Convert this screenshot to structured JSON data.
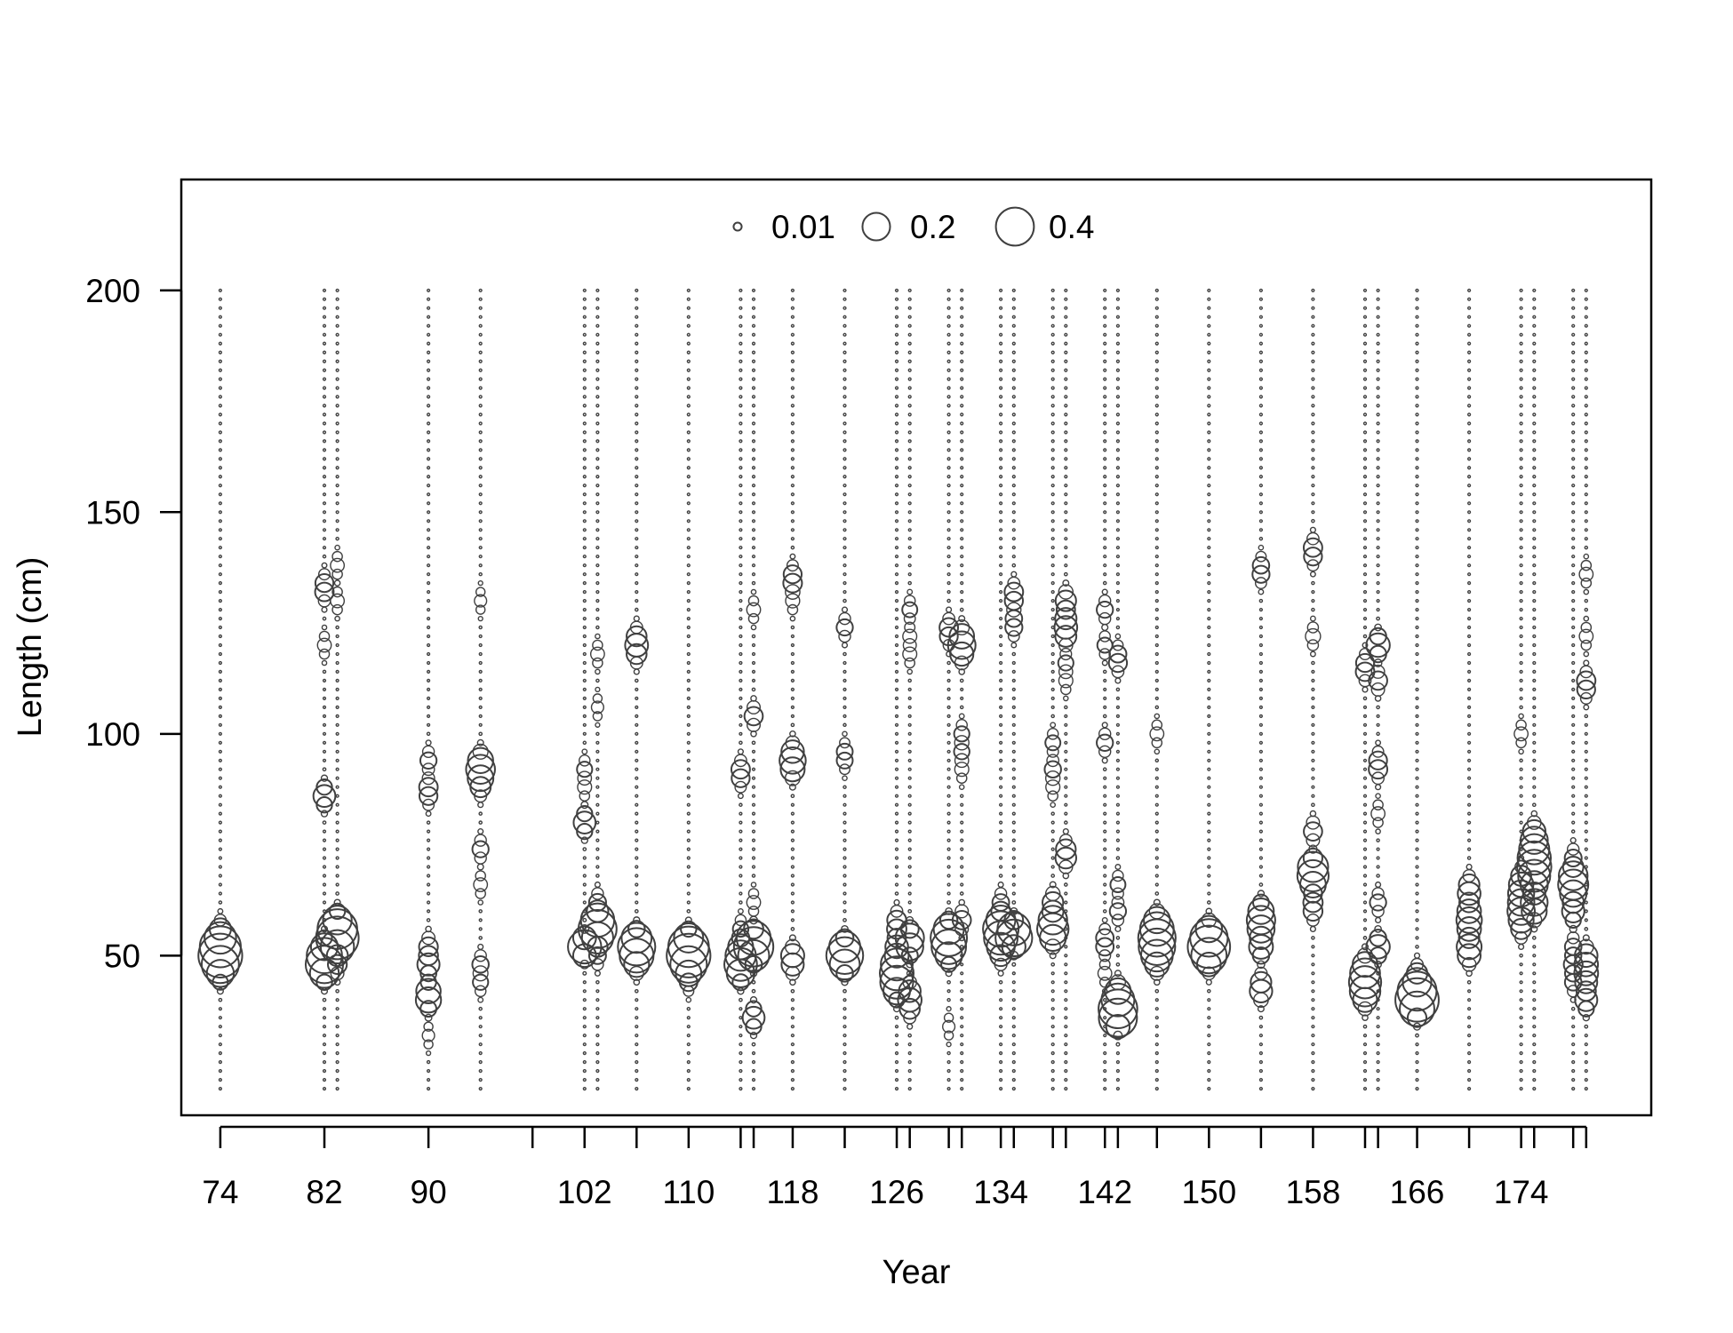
{
  "chart_data": {
    "type": "scatter",
    "subtype": "bubble",
    "title": "",
    "xlabel": "Year",
    "ylabel": "Length (cm)",
    "ylim": [
      14,
      225
    ],
    "xlim": [
      71,
      184
    ],
    "y_ticks": [
      50,
      100,
      150,
      200
    ],
    "x_ticks": [
      74,
      82,
      90,
      98,
      102,
      106,
      110,
      114,
      115,
      118,
      122,
      126,
      127,
      130,
      131,
      134,
      135,
      138,
      139,
      142,
      143,
      146,
      150,
      154,
      158,
      162,
      163,
      166,
      170,
      174,
      175,
      178,
      179
    ],
    "x_tick_labels": [
      "74",
      "82",
      "90",
      "102",
      "110",
      "118",
      "126",
      "134",
      "142",
      "150",
      "158",
      "166",
      "174"
    ],
    "x_labeled_ticks": [
      74,
      82,
      90,
      102,
      110,
      118,
      126,
      134,
      142,
      150,
      158,
      166,
      174
    ],
    "grid": false,
    "legend": {
      "position": "top-center",
      "entries": [
        {
          "label": "0.01",
          "value": 0.01
        },
        {
          "label": "0.2",
          "value": 0.2
        },
        {
          "label": "0.4",
          "value": 0.4
        }
      ]
    },
    "bin_range": [
      20,
      200
    ],
    "bin_width": 2,
    "years": [
      74,
      82,
      83,
      90,
      94,
      102,
      103,
      106,
      110,
      114,
      115,
      118,
      122,
      126,
      127,
      130,
      131,
      134,
      135,
      138,
      139,
      142,
      143,
      146,
      150,
      154,
      158,
      162,
      163,
      166,
      170,
      174,
      175,
      178,
      179
    ],
    "samples": [
      {
        "year": 74,
        "peaks": [
          [
            48,
            0.18
          ],
          [
            50,
            0.34
          ],
          [
            52,
            0.26
          ],
          [
            54,
            0.12
          ],
          [
            46,
            0.1
          ],
          [
            56,
            0.05
          ]
        ]
      },
      {
        "year": 82,
        "peaks": [
          [
            48,
            0.26
          ],
          [
            50,
            0.18
          ],
          [
            46,
            0.1
          ],
          [
            52,
            0.1
          ],
          [
            86,
            0.12
          ],
          [
            132,
            0.06
          ],
          [
            120,
            0.04
          ],
          [
            134,
            0.05
          ]
        ]
      },
      {
        "year": 83,
        "peaks": [
          [
            54,
            0.34
          ],
          [
            56,
            0.24
          ],
          [
            52,
            0.14
          ],
          [
            58,
            0.1
          ],
          [
            48,
            0.08
          ],
          [
            138,
            0.04
          ],
          [
            130,
            0.04
          ]
        ]
      },
      {
        "year": 90,
        "peaks": [
          [
            40,
            0.12
          ],
          [
            42,
            0.1
          ],
          [
            48,
            0.12
          ],
          [
            52,
            0.08
          ],
          [
            88,
            0.06
          ],
          [
            94,
            0.06
          ],
          [
            86,
            0.05
          ],
          [
            32,
            0.03
          ]
        ]
      },
      {
        "year": 94,
        "peaks": [
          [
            92,
            0.14
          ],
          [
            94,
            0.1
          ],
          [
            90,
            0.08
          ],
          [
            88,
            0.06
          ],
          [
            74,
            0.06
          ],
          [
            48,
            0.06
          ],
          [
            44,
            0.05
          ],
          [
            66,
            0.04
          ],
          [
            130,
            0.03
          ]
        ]
      },
      {
        "year": 102,
        "peaks": [
          [
            52,
            0.3
          ],
          [
            80,
            0.12
          ],
          [
            92,
            0.05
          ],
          [
            88,
            0.04
          ]
        ]
      },
      {
        "year": 103,
        "peaks": [
          [
            56,
            0.26
          ],
          [
            58,
            0.18
          ],
          [
            54,
            0.14
          ],
          [
            62,
            0.06
          ],
          [
            50,
            0.06
          ],
          [
            118,
            0.04
          ],
          [
            106,
            0.03
          ]
        ]
      },
      {
        "year": 106,
        "peaks": [
          [
            52,
            0.26
          ],
          [
            50,
            0.16
          ],
          [
            54,
            0.12
          ],
          [
            120,
            0.08
          ],
          [
            122,
            0.06
          ],
          [
            118,
            0.06
          ],
          [
            48,
            0.08
          ]
        ]
      },
      {
        "year": 110,
        "peaks": [
          [
            50,
            0.34
          ],
          [
            52,
            0.26
          ],
          [
            48,
            0.18
          ],
          [
            54,
            0.1
          ],
          [
            46,
            0.06
          ],
          [
            44,
            0.04
          ]
        ]
      },
      {
        "year": 114,
        "peaks": [
          [
            48,
            0.18
          ],
          [
            46,
            0.12
          ],
          [
            50,
            0.12
          ],
          [
            52,
            0.1
          ],
          [
            92,
            0.06
          ],
          [
            90,
            0.05
          ],
          [
            56,
            0.05
          ]
        ]
      },
      {
        "year": 115,
        "peaks": [
          [
            52,
            0.3
          ],
          [
            54,
            0.18
          ],
          [
            50,
            0.12
          ],
          [
            36,
            0.12
          ],
          [
            104,
            0.08
          ],
          [
            128,
            0.04
          ],
          [
            62,
            0.04
          ]
        ]
      },
      {
        "year": 118,
        "peaks": [
          [
            94,
            0.1
          ],
          [
            92,
            0.1
          ],
          [
            96,
            0.08
          ],
          [
            50,
            0.1
          ],
          [
            48,
            0.08
          ],
          [
            134,
            0.06
          ],
          [
            136,
            0.05
          ],
          [
            130,
            0.04
          ]
        ]
      },
      {
        "year": 122,
        "peaks": [
          [
            50,
            0.26
          ],
          [
            48,
            0.12
          ],
          [
            52,
            0.14
          ],
          [
            124,
            0.06
          ],
          [
            96,
            0.04
          ],
          [
            94,
            0.04
          ]
        ]
      },
      {
        "year": 126,
        "peaks": [
          [
            48,
            0.2
          ],
          [
            44,
            0.18
          ],
          [
            46,
            0.14
          ],
          [
            52,
            0.12
          ],
          [
            42,
            0.1
          ],
          [
            56,
            0.06
          ],
          [
            58,
            0.06
          ]
        ]
      },
      {
        "year": 127,
        "peaks": [
          [
            54,
            0.16
          ],
          [
            52,
            0.12
          ],
          [
            42,
            0.08
          ],
          [
            40,
            0.08
          ],
          [
            38,
            0.06
          ],
          [
            128,
            0.05
          ],
          [
            118,
            0.04
          ],
          [
            122,
            0.04
          ]
        ]
      },
      {
        "year": 130,
        "peaks": [
          [
            54,
            0.22
          ],
          [
            52,
            0.18
          ],
          [
            56,
            0.14
          ],
          [
            50,
            0.1
          ],
          [
            124,
            0.06
          ],
          [
            122,
            0.05
          ],
          [
            34,
            0.03
          ]
        ]
      },
      {
        "year": 131,
        "peaks": [
          [
            120,
            0.12
          ],
          [
            122,
            0.1
          ],
          [
            118,
            0.08
          ],
          [
            58,
            0.08
          ],
          [
            100,
            0.05
          ],
          [
            96,
            0.05
          ],
          [
            92,
            0.04
          ]
        ]
      },
      {
        "year": 134,
        "peaks": [
          [
            56,
            0.22
          ],
          [
            54,
            0.16
          ],
          [
            58,
            0.12
          ],
          [
            52,
            0.1
          ],
          [
            62,
            0.06
          ],
          [
            50,
            0.06
          ]
        ]
      },
      {
        "year": 135,
        "peaks": [
          [
            54,
            0.3
          ],
          [
            56,
            0.16
          ],
          [
            132,
            0.06
          ],
          [
            130,
            0.05
          ],
          [
            124,
            0.05
          ],
          [
            126,
            0.04
          ]
        ]
      },
      {
        "year": 138,
        "peaks": [
          [
            56,
            0.16
          ],
          [
            58,
            0.14
          ],
          [
            62,
            0.1
          ],
          [
            54,
            0.1
          ],
          [
            92,
            0.06
          ],
          [
            98,
            0.05
          ],
          [
            88,
            0.04
          ]
        ]
      },
      {
        "year": 139,
        "peaks": [
          [
            130,
            0.1
          ],
          [
            126,
            0.08
          ],
          [
            122,
            0.08
          ],
          [
            124,
            0.06
          ],
          [
            72,
            0.08
          ],
          [
            74,
            0.06
          ],
          [
            116,
            0.05
          ],
          [
            112,
            0.04
          ]
        ]
      },
      {
        "year": 142,
        "peaks": [
          [
            128,
            0.06
          ],
          [
            120,
            0.05
          ],
          [
            98,
            0.06
          ],
          [
            54,
            0.05
          ],
          [
            52,
            0.05
          ],
          [
            46,
            0.04
          ]
        ]
      },
      {
        "year": 143,
        "peaks": [
          [
            36,
            0.3
          ],
          [
            38,
            0.22
          ],
          [
            40,
            0.14
          ],
          [
            42,
            0.1
          ],
          [
            60,
            0.06
          ],
          [
            66,
            0.05
          ],
          [
            116,
            0.06
          ],
          [
            118,
            0.04
          ]
        ]
      },
      {
        "year": 146,
        "peaks": [
          [
            54,
            0.22
          ],
          [
            52,
            0.2
          ],
          [
            56,
            0.16
          ],
          [
            50,
            0.14
          ],
          [
            58,
            0.1
          ],
          [
            48,
            0.08
          ],
          [
            100,
            0.04
          ]
        ]
      },
      {
        "year": 150,
        "peaks": [
          [
            52,
            0.34
          ],
          [
            54,
            0.2
          ],
          [
            50,
            0.16
          ],
          [
            56,
            0.08
          ],
          [
            48,
            0.06
          ]
        ]
      },
      {
        "year": 154,
        "peaks": [
          [
            52,
            0.14
          ],
          [
            56,
            0.14
          ],
          [
            60,
            0.12
          ],
          [
            58,
            0.1
          ],
          [
            42,
            0.1
          ],
          [
            44,
            0.06
          ],
          [
            136,
            0.05
          ],
          [
            138,
            0.04
          ]
        ]
      },
      {
        "year": 158,
        "peaks": [
          [
            70,
            0.18
          ],
          [
            68,
            0.14
          ],
          [
            66,
            0.1
          ],
          [
            78,
            0.08
          ],
          [
            62,
            0.06
          ],
          [
            60,
            0.06
          ],
          [
            142,
            0.06
          ],
          [
            140,
            0.05
          ],
          [
            122,
            0.05
          ]
        ]
      },
      {
        "year": 162,
        "peaks": [
          [
            44,
            0.16
          ],
          [
            42,
            0.14
          ],
          [
            46,
            0.12
          ],
          [
            48,
            0.1
          ],
          [
            40,
            0.08
          ],
          [
            114,
            0.06
          ],
          [
            116,
            0.05
          ]
        ]
      },
      {
        "year": 163,
        "peaks": [
          [
            120,
            0.14
          ],
          [
            52,
            0.14
          ],
          [
            112,
            0.08
          ],
          [
            92,
            0.06
          ],
          [
            62,
            0.06
          ],
          [
            94,
            0.05
          ],
          [
            82,
            0.04
          ]
        ]
      },
      {
        "year": 166,
        "peaks": [
          [
            40,
            0.36
          ],
          [
            42,
            0.22
          ],
          [
            38,
            0.16
          ],
          [
            44,
            0.08
          ],
          [
            46,
            0.06
          ]
        ]
      },
      {
        "year": 170,
        "peaks": [
          [
            52,
            0.12
          ],
          [
            60,
            0.1
          ],
          [
            56,
            0.1
          ],
          [
            64,
            0.1
          ],
          [
            50,
            0.08
          ],
          [
            58,
            0.08
          ],
          [
            66,
            0.06
          ]
        ]
      },
      {
        "year": 174,
        "peaks": [
          [
            60,
            0.12
          ],
          [
            64,
            0.1
          ],
          [
            58,
            0.08
          ],
          [
            66,
            0.08
          ],
          [
            62,
            0.08
          ],
          [
            68,
            0.06
          ],
          [
            56,
            0.06
          ],
          [
            100,
            0.04
          ]
        ]
      },
      {
        "year": 175,
        "peaks": [
          [
            70,
            0.18
          ],
          [
            72,
            0.16
          ],
          [
            68,
            0.14
          ],
          [
            62,
            0.14
          ],
          [
            74,
            0.12
          ],
          [
            66,
            0.12
          ],
          [
            76,
            0.1
          ],
          [
            60,
            0.1
          ],
          [
            78,
            0.08
          ]
        ]
      },
      {
        "year": 178,
        "peaks": [
          [
            68,
            0.16
          ],
          [
            66,
            0.12
          ],
          [
            60,
            0.12
          ],
          [
            64,
            0.12
          ],
          [
            48,
            0.08
          ],
          [
            52,
            0.06
          ],
          [
            44,
            0.06
          ],
          [
            72,
            0.06
          ]
        ]
      },
      {
        "year": 179,
        "peaks": [
          [
            40,
            0.12
          ],
          [
            50,
            0.1
          ],
          [
            44,
            0.08
          ],
          [
            46,
            0.08
          ],
          [
            48,
            0.06
          ],
          [
            112,
            0.06
          ],
          [
            110,
            0.05
          ],
          [
            122,
            0.04
          ],
          [
            136,
            0.04
          ]
        ]
      }
    ]
  },
  "colors": {
    "marker_stroke": "#404040",
    "axis": "#000000",
    "background": "#ffffff"
  }
}
